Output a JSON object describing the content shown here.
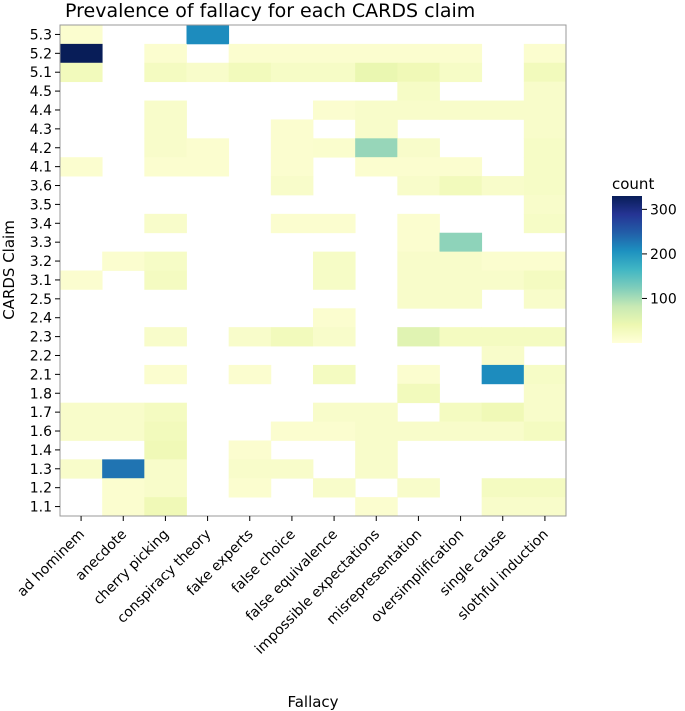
{
  "chart_data": {
    "type": "heatmap",
    "title": "Prevalence of fallacy for each CARDS claim",
    "xlabel": "Fallacy",
    "ylabel": "CARDS Claim",
    "x_categories": [
      "ad hominem",
      "anecdote",
      "cherry picking",
      "conspiracy theory",
      "fake experts",
      "false choice",
      "false equivalence",
      "impossible expectations",
      "misrepresentation",
      "oversimplification",
      "single cause",
      "slothful induction"
    ],
    "y_categories": [
      "5.3",
      "5.2",
      "5.1",
      "4.5",
      "4.4",
      "4.3",
      "4.2",
      "4.1",
      "3.6",
      "3.5",
      "3.4",
      "3.3",
      "3.2",
      "3.1",
      "2.5",
      "2.4",
      "2.3",
      "2.2",
      "2.1",
      "1.8",
      "1.7",
      "1.6",
      "1.4",
      "1.3",
      "1.2",
      "1.1"
    ],
    "values": [
      [
        10,
        null,
        null,
        210,
        null,
        null,
        null,
        null,
        null,
        null,
        null,
        null
      ],
      [
        330,
        null,
        10,
        null,
        10,
        10,
        10,
        10,
        10,
        10,
        null,
        10
      ],
      [
        30,
        null,
        25,
        15,
        30,
        20,
        20,
        45,
        35,
        20,
        null,
        30
      ],
      [
        null,
        null,
        null,
        null,
        null,
        null,
        null,
        null,
        20,
        null,
        null,
        15
      ],
      [
        null,
        null,
        15,
        null,
        null,
        null,
        10,
        15,
        15,
        15,
        15,
        15
      ],
      [
        null,
        null,
        15,
        null,
        null,
        10,
        null,
        15,
        null,
        null,
        null,
        15
      ],
      [
        null,
        null,
        15,
        10,
        null,
        10,
        12,
        110,
        15,
        null,
        null,
        20
      ],
      [
        10,
        null,
        10,
        10,
        null,
        10,
        null,
        10,
        10,
        10,
        null,
        20
      ],
      [
        null,
        null,
        null,
        null,
        null,
        15,
        null,
        null,
        15,
        30,
        15,
        20
      ],
      [
        null,
        null,
        null,
        null,
        null,
        null,
        null,
        null,
        null,
        null,
        null,
        15
      ],
      [
        null,
        null,
        15,
        null,
        null,
        10,
        10,
        null,
        10,
        null,
        null,
        20
      ],
      [
        null,
        null,
        null,
        null,
        null,
        null,
        null,
        null,
        10,
        115,
        null,
        null
      ],
      [
        null,
        10,
        20,
        null,
        null,
        null,
        20,
        null,
        15,
        15,
        10,
        10
      ],
      [
        10,
        null,
        25,
        null,
        null,
        null,
        20,
        null,
        15,
        15,
        15,
        25
      ],
      [
        null,
        null,
        null,
        null,
        null,
        null,
        null,
        null,
        15,
        15,
        null,
        15
      ],
      [
        null,
        null,
        null,
        null,
        null,
        null,
        10,
        null,
        null,
        null,
        null,
        null
      ],
      [
        null,
        null,
        15,
        null,
        15,
        30,
        15,
        null,
        55,
        25,
        25,
        25
      ],
      [
        null,
        null,
        null,
        null,
        null,
        null,
        null,
        null,
        null,
        null,
        15,
        null
      ],
      [
        null,
        null,
        10,
        null,
        10,
        null,
        25,
        null,
        10,
        null,
        210,
        20
      ],
      [
        null,
        null,
        null,
        null,
        null,
        null,
        null,
        null,
        30,
        null,
        null,
        15
      ],
      [
        15,
        15,
        25,
        null,
        null,
        null,
        15,
        15,
        null,
        25,
        35,
        15
      ],
      [
        15,
        15,
        30,
        null,
        null,
        10,
        10,
        15,
        15,
        15,
        15,
        25
      ],
      [
        null,
        null,
        35,
        null,
        10,
        null,
        null,
        15,
        null,
        null,
        null,
        null
      ],
      [
        15,
        230,
        15,
        null,
        15,
        15,
        null,
        15,
        null,
        null,
        null,
        null
      ],
      [
        null,
        10,
        15,
        null,
        10,
        null,
        15,
        null,
        15,
        null,
        25,
        25
      ],
      [
        null,
        10,
        35,
        null,
        null,
        null,
        null,
        10,
        null,
        null,
        15,
        15
      ]
    ],
    "colorbar": {
      "label": "count",
      "min": 0,
      "max": 330,
      "ticks": [
        100,
        200,
        300
      ]
    },
    "colormap": "YlGnBu",
    "grid": false,
    "legend_position": "right"
  }
}
